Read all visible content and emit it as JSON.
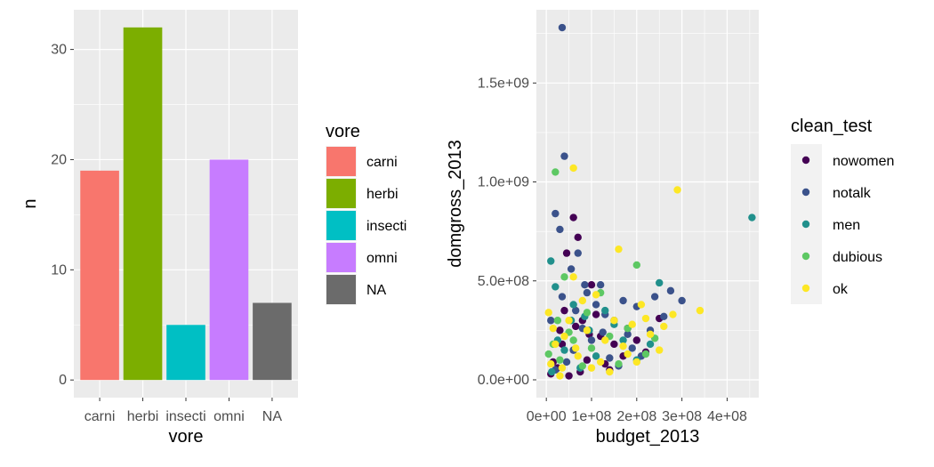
{
  "chart_data": [
    {
      "type": "bar",
      "categories": [
        "carni",
        "herbi",
        "insecti",
        "omni",
        "NA"
      ],
      "values": [
        19,
        32,
        5,
        20,
        7
      ],
      "colors": [
        "#F8766D",
        "#7CAE00",
        "#00BFC4",
        "#C77CFF",
        "#6b6b6b"
      ],
      "xlabel": "vore",
      "ylabel": "n",
      "ylim": [
        -1.6,
        33.6
      ],
      "yticks": [
        0,
        10,
        20,
        30
      ],
      "ytick_labels": [
        "0",
        "10",
        "20",
        "30"
      ],
      "legend": {
        "title": "vore",
        "entries": [
          "carni",
          "herbi",
          "insecti",
          "omni",
          "NA"
        ],
        "placement": "right"
      },
      "grid": true,
      "background": "#EBEBEB"
    },
    {
      "type": "scatter",
      "xlabel": "budget_2013",
      "ylabel": "domgross_2013",
      "xlim": [
        -22000000,
        470000000
      ],
      "ylim": [
        -90000000,
        1870000000
      ],
      "xticks": [
        0,
        100000000,
        200000000,
        300000000,
        400000000
      ],
      "xtick_labels": [
        "0e+00",
        "1e+08",
        "2e+08",
        "3e+08",
        "4e+08"
      ],
      "yticks": [
        0,
        500000000,
        1000000000,
        1500000000
      ],
      "ytick_labels": [
        "0.0e+00",
        "5.0e+08",
        "1.0e+09",
        "1.5e+09"
      ],
      "grid": true,
      "background": "#EBEBEB",
      "legend": {
        "title": "clean_test",
        "entries": [
          "nowomen",
          "notalk",
          "men",
          "dubious",
          "ok"
        ],
        "placement": "right"
      },
      "series": [
        {
          "name": "nowomen",
          "color": "#440154",
          "points": [
            [
              60000000,
              820000000
            ],
            [
              70000000,
              720000000
            ],
            [
              45000000,
              640000000
            ],
            [
              100000000,
              480000000
            ],
            [
              40000000,
              350000000
            ],
            [
              80000000,
              300000000
            ],
            [
              30000000,
              250000000
            ],
            [
              120000000,
              220000000
            ],
            [
              150000000,
              180000000
            ],
            [
              60000000,
              150000000
            ],
            [
              200000000,
              200000000
            ],
            [
              90000000,
              100000000
            ],
            [
              25000000,
              60000000
            ],
            [
              10000000,
              30000000
            ],
            [
              130000000,
              80000000
            ],
            [
              170000000,
              120000000
            ],
            [
              50000000,
              20000000
            ],
            [
              250000000,
              310000000
            ],
            [
              180000000,
              260000000
            ],
            [
              110000000,
              330000000
            ],
            [
              75000000,
              40000000
            ],
            [
              15000000,
              90000000
            ],
            [
              220000000,
              140000000
            ],
            [
              140000000,
              50000000
            ],
            [
              35000000,
              180000000
            ],
            [
              95000000,
              230000000
            ],
            [
              65000000,
              270000000
            ]
          ]
        },
        {
          "name": "notalk",
          "color": "#3B528B",
          "points": [
            [
              35000000,
              1780000000
            ],
            [
              40000000,
              1130000000
            ],
            [
              20000000,
              840000000
            ],
            [
              30000000,
              760000000
            ],
            [
              120000000,
              480000000
            ],
            [
              70000000,
              640000000
            ],
            [
              55000000,
              560000000
            ],
            [
              85000000,
              480000000
            ],
            [
              300000000,
              400000000
            ],
            [
              275000000,
              450000000
            ],
            [
              240000000,
              420000000
            ],
            [
              260000000,
              320000000
            ],
            [
              200000000,
              370000000
            ],
            [
              230000000,
              250000000
            ],
            [
              180000000,
              230000000
            ],
            [
              150000000,
              300000000
            ],
            [
              100000000,
              200000000
            ],
            [
              60000000,
              150000000
            ],
            [
              45000000,
              90000000
            ],
            [
              20000000,
              50000000
            ],
            [
              140000000,
              110000000
            ],
            [
              190000000,
              160000000
            ],
            [
              210000000,
              120000000
            ],
            [
              160000000,
              70000000
            ],
            [
              110000000,
              380000000
            ],
            [
              80000000,
              260000000
            ],
            [
              125000000,
              240000000
            ],
            [
              35000000,
              420000000
            ],
            [
              10000000,
              300000000
            ],
            [
              65000000,
              350000000
            ],
            [
              170000000,
              400000000
            ],
            [
              90000000,
              440000000
            ],
            [
              130000000,
              330000000
            ]
          ]
        },
        {
          "name": "men",
          "color": "#21908C",
          "points": [
            [
              455000000,
              820000000
            ],
            [
              250000000,
              490000000
            ],
            [
              10000000,
              600000000
            ],
            [
              20000000,
              470000000
            ],
            [
              60000000,
              380000000
            ],
            [
              130000000,
              350000000
            ],
            [
              95000000,
              250000000
            ],
            [
              170000000,
              200000000
            ],
            [
              40000000,
              150000000
            ],
            [
              200000000,
              100000000
            ],
            [
              75000000,
              60000000
            ],
            [
              25000000,
              200000000
            ],
            [
              110000000,
              120000000
            ],
            [
              150000000,
              280000000
            ],
            [
              55000000,
              300000000
            ],
            [
              230000000,
              180000000
            ],
            [
              12000000,
              40000000
            ],
            [
              85000000,
              320000000
            ]
          ]
        },
        {
          "name": "dubious",
          "color": "#5DC863",
          "points": [
            [
              20000000,
              1050000000
            ],
            [
              200000000,
              580000000
            ],
            [
              40000000,
              520000000
            ],
            [
              120000000,
              440000000
            ],
            [
              25000000,
              300000000
            ],
            [
              60000000,
              200000000
            ],
            [
              100000000,
              160000000
            ],
            [
              180000000,
              260000000
            ],
            [
              30000000,
              100000000
            ],
            [
              140000000,
              220000000
            ],
            [
              220000000,
              130000000
            ],
            [
              80000000,
              70000000
            ],
            [
              15000000,
              180000000
            ],
            [
              160000000,
              80000000
            ],
            [
              50000000,
              240000000
            ],
            [
              240000000,
              210000000
            ],
            [
              90000000,
              340000000
            ],
            [
              5000000,
              130000000
            ]
          ]
        },
        {
          "name": "ok",
          "color": "#FDE725",
          "points": [
            [
              60000000,
              1070000000
            ],
            [
              290000000,
              960000000
            ],
            [
              160000000,
              660000000
            ],
            [
              340000000,
              350000000
            ],
            [
              280000000,
              330000000
            ],
            [
              220000000,
              310000000
            ],
            [
              60000000,
              520000000
            ],
            [
              110000000,
              430000000
            ],
            [
              150000000,
              300000000
            ],
            [
              190000000,
              280000000
            ],
            [
              90000000,
              250000000
            ],
            [
              40000000,
              220000000
            ],
            [
              20000000,
              180000000
            ],
            [
              70000000,
              120000000
            ],
            [
              130000000,
              200000000
            ],
            [
              250000000,
              150000000
            ],
            [
              10000000,
              80000000
            ],
            [
              30000000,
              20000000
            ],
            [
              100000000,
              60000000
            ],
            [
              200000000,
              90000000
            ],
            [
              170000000,
              170000000
            ],
            [
              230000000,
              230000000
            ],
            [
              50000000,
              300000000
            ],
            [
              120000000,
              90000000
            ],
            [
              80000000,
              400000000
            ],
            [
              15000000,
              260000000
            ],
            [
              140000000,
              40000000
            ],
            [
              210000000,
              380000000
            ],
            [
              65000000,
              160000000
            ],
            [
              5000000,
              340000000
            ],
            [
              35000000,
              60000000
            ],
            [
              260000000,
              270000000
            ],
            [
              180000000,
              130000000
            ]
          ]
        }
      ]
    }
  ]
}
